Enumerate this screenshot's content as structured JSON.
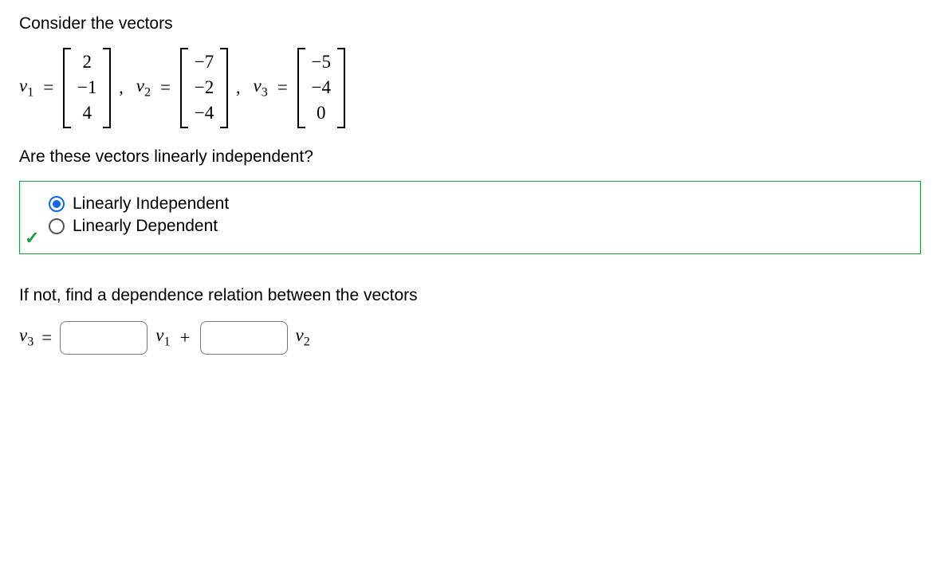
{
  "prompt": "Consider the vectors",
  "vectors": {
    "v1_label": "v",
    "v1_sub": "1",
    "v1": [
      "2",
      "−1",
      "4"
    ],
    "v2_label": "v",
    "v2_sub": "2",
    "v2": [
      "−7",
      "−2",
      "−4"
    ],
    "v3_label": "v",
    "v3_sub": "3",
    "v3": [
      "−5",
      "−4",
      "0"
    ]
  },
  "eq_sign": "=",
  "comma": ",",
  "question": "Are these vectors linearly independent?",
  "options": {
    "opt1": "Linearly Independent",
    "opt2": "Linearly Dependent",
    "selected": 1
  },
  "followup": "If not, find a dependence relation between the vectors",
  "relation": {
    "lhs_label": "v",
    "lhs_sub": "3",
    "eq": "=",
    "term1_label": "v",
    "term1_sub": "1",
    "plus": "+",
    "term2_label": "v",
    "term2_sub": "2",
    "coef1": "",
    "coef2": ""
  },
  "colors": {
    "correct_border": "#1a9b3c",
    "radio_selected": "#0d6aeb",
    "text": "#000000",
    "background": "#ffffff",
    "input_border": "#767676"
  }
}
